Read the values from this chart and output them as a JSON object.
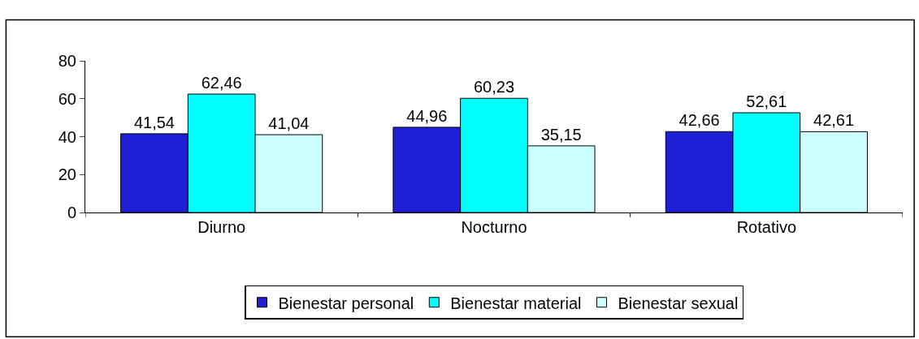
{
  "chart_data": {
    "type": "bar",
    "categories": [
      "Diurno",
      "Nocturno",
      "Rotativo"
    ],
    "series": [
      {
        "name": "Bienestar personal",
        "color": "#1f1fd6",
        "values": [
          41.54,
          44.96,
          42.66
        ],
        "value_labels": [
          "41,54",
          "44,96",
          "42,66"
        ]
      },
      {
        "name": "Bienestar material",
        "color": "#00ffff",
        "values": [
          62.46,
          60.23,
          52.61
        ],
        "value_labels": [
          "62,46",
          "60,23",
          "52,61"
        ]
      },
      {
        "name": "Bienestar sexual",
        "color": "#ccffff",
        "values": [
          41.04,
          35.15,
          42.61
        ],
        "value_labels": [
          "41,04",
          "35,15",
          "42,61"
        ]
      }
    ],
    "ylim": [
      0,
      80
    ],
    "yticks": [
      0,
      20,
      40,
      60,
      80
    ],
    "legend": "bottom"
  }
}
